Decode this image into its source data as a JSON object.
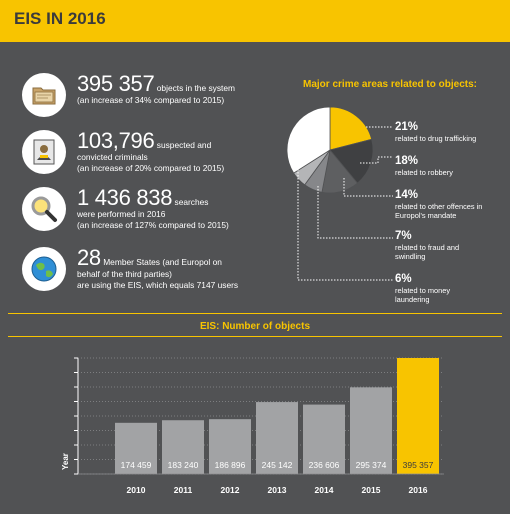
{
  "header": {
    "title": "EIS IN 2016"
  },
  "stats": [
    {
      "icon": "folder-icon",
      "big": "395 357",
      "suffix": " objects in the system",
      "lines": [
        "(an increase of 34% compared to 2015)"
      ]
    },
    {
      "icon": "criminal-profile-icon",
      "big": "103,796",
      "suffix": " suspected and",
      "lines": [
        "convicted criminals",
        "(an increase of 20% compared to 2015)"
      ]
    },
    {
      "icon": "magnifier-icon",
      "big": "1 436 838",
      "suffix": " searches",
      "lines": [
        "were performed in 2016",
        "(an increase of 127% compared to 2015)"
      ]
    },
    {
      "icon": "globe-icon",
      "big": "28",
      "suffix": " Member States (and Europol on",
      "lines": [
        "behalf of the third parties)",
        "are using the EIS, which equals 7147 users"
      ]
    }
  ],
  "colors": {
    "accent": "#f8c400",
    "background": "#515254",
    "bar": "#a2a3a5"
  },
  "chart_data": [
    {
      "type": "pie",
      "title": "Major crime areas related to objects:",
      "slices": [
        {
          "pct": "21%",
          "label": "related to drug trafficking",
          "value": 21,
          "color": "#f8c400"
        },
        {
          "pct": "18%",
          "label": "related to robbery",
          "value": 18,
          "color": "#3f4042"
        },
        {
          "pct": "14%",
          "label": "related to other offences in Europol's mandate",
          "value": 14,
          "color": "#5e5f61"
        },
        {
          "pct": "7%",
          "label": "related to fraud and swindling",
          "value": 7,
          "color": "#86878a"
        },
        {
          "pct": "6%",
          "label": "related to money laundering",
          "value": 6,
          "color": "#b4b5b7"
        },
        {
          "pct": "",
          "label": "",
          "value": 34,
          "color": "#ffffff"
        }
      ]
    },
    {
      "type": "bar",
      "title": "EIS: Number of objects",
      "categories": [
        "2010",
        "2011",
        "2012",
        "2013",
        "2014",
        "2015",
        "2016"
      ],
      "values": [
        174459,
        183240,
        186896,
        245142,
        236606,
        295374,
        395357
      ],
      "labels": [
        "174 459",
        "183 240",
        "186 896",
        "245 142",
        "236 606",
        "295 374",
        "395 357"
      ],
      "highlight": "2016",
      "ylabel": "Year",
      "ylim": [
        0,
        395357
      ]
    }
  ]
}
